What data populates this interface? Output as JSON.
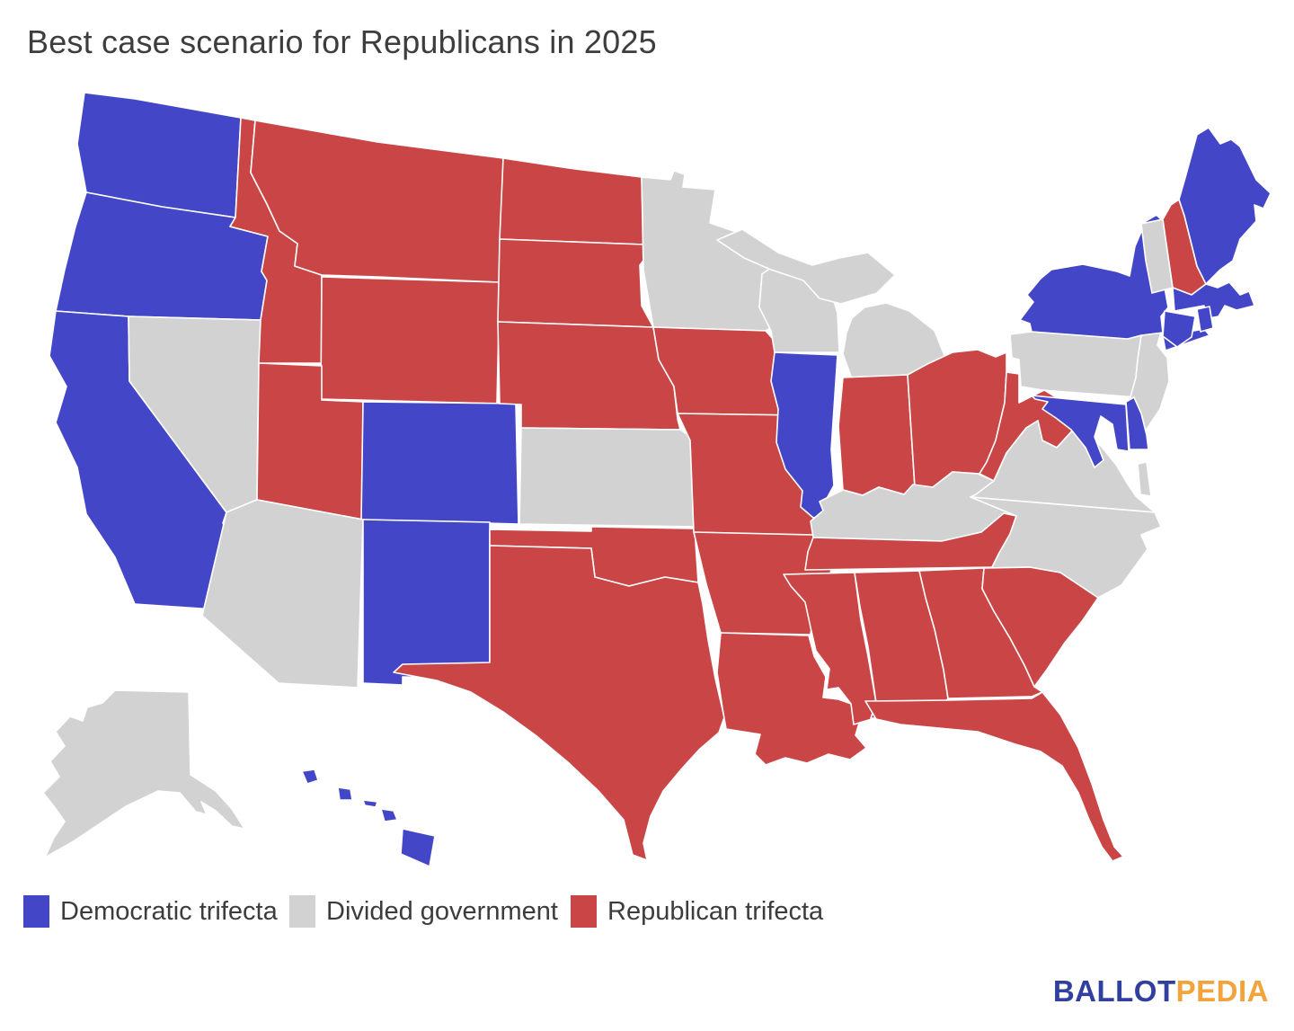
{
  "header": {
    "title": "Best case scenario for Republicans in 2025"
  },
  "legend": {
    "items": [
      {
        "label": "Democratic trifecta",
        "status": "democratic",
        "color": "#4446c8"
      },
      {
        "label": "Divided government",
        "status": "divided",
        "color": "#d2d2d2"
      },
      {
        "label": "Republican trifecta",
        "status": "republican",
        "color": "#ca4545"
      }
    ]
  },
  "footer": {
    "logo": {
      "text_primary": "BALLOT",
      "color_primary": "#31409e",
      "text_secondary": "PEDIA",
      "color_secondary": "#f2a33c"
    }
  },
  "chart_data": {
    "type": "choropleth",
    "title": "Best case scenario for Republicans in 2025",
    "region": "United States",
    "legend_position": "bottom-left",
    "categories": [
      "Democratic trifecta",
      "Divided government",
      "Republican trifecta"
    ],
    "colors": {
      "democratic": "#4446c8",
      "divided": "#d2d2d2",
      "republican": "#ca4545"
    },
    "counts": {
      "democratic": 14,
      "divided": 13,
      "republican": 23
    },
    "states": [
      {
        "abbr": "AK",
        "name": "Alaska",
        "status": "divided"
      },
      {
        "abbr": "HI",
        "name": "Hawaii",
        "status": "democratic"
      },
      {
        "abbr": "WA",
        "name": "Washington",
        "status": "democratic"
      },
      {
        "abbr": "OR",
        "name": "Oregon",
        "status": "democratic"
      },
      {
        "abbr": "CA",
        "name": "California",
        "status": "democratic"
      },
      {
        "abbr": "NV",
        "name": "Nevada",
        "status": "divided"
      },
      {
        "abbr": "ID",
        "name": "Idaho",
        "status": "republican"
      },
      {
        "abbr": "MT",
        "name": "Montana",
        "status": "republican"
      },
      {
        "abbr": "WY",
        "name": "Wyoming",
        "status": "republican"
      },
      {
        "abbr": "UT",
        "name": "Utah",
        "status": "republican"
      },
      {
        "abbr": "CO",
        "name": "Colorado",
        "status": "democratic"
      },
      {
        "abbr": "AZ",
        "name": "Arizona",
        "status": "divided"
      },
      {
        "abbr": "NM",
        "name": "New Mexico",
        "status": "democratic"
      },
      {
        "abbr": "ND",
        "name": "North Dakota",
        "status": "republican"
      },
      {
        "abbr": "SD",
        "name": "South Dakota",
        "status": "republican"
      },
      {
        "abbr": "NE",
        "name": "Nebraska",
        "status": "republican"
      },
      {
        "abbr": "KS",
        "name": "Kansas",
        "status": "divided"
      },
      {
        "abbr": "OK",
        "name": "Oklahoma",
        "status": "republican"
      },
      {
        "abbr": "TX",
        "name": "Texas",
        "status": "republican"
      },
      {
        "abbr": "MN",
        "name": "Minnesota",
        "status": "divided"
      },
      {
        "abbr": "IA",
        "name": "Iowa",
        "status": "republican"
      },
      {
        "abbr": "MO",
        "name": "Missouri",
        "status": "republican"
      },
      {
        "abbr": "AR",
        "name": "Arkansas",
        "status": "republican"
      },
      {
        "abbr": "LA",
        "name": "Louisiana",
        "status": "republican"
      },
      {
        "abbr": "WI",
        "name": "Wisconsin",
        "status": "divided"
      },
      {
        "abbr": "IL",
        "name": "Illinois",
        "status": "democratic"
      },
      {
        "abbr": "MS",
        "name": "Mississippi",
        "status": "republican"
      },
      {
        "abbr": "AL",
        "name": "Alabama",
        "status": "republican"
      },
      {
        "abbr": "GA",
        "name": "Georgia",
        "status": "republican"
      },
      {
        "abbr": "FL",
        "name": "Florida",
        "status": "republican"
      },
      {
        "abbr": "MI",
        "name": "Michigan",
        "status": "divided"
      },
      {
        "abbr": "IN",
        "name": "Indiana",
        "status": "republican"
      },
      {
        "abbr": "OH",
        "name": "Ohio",
        "status": "republican"
      },
      {
        "abbr": "KY",
        "name": "Kentucky",
        "status": "divided"
      },
      {
        "abbr": "TN",
        "name": "Tennessee",
        "status": "republican"
      },
      {
        "abbr": "PA",
        "name": "Pennsylvania",
        "status": "divided"
      },
      {
        "abbr": "NJ",
        "name": "New Jersey",
        "status": "divided"
      },
      {
        "abbr": "NY",
        "name": "New York",
        "status": "democratic"
      },
      {
        "abbr": "VT",
        "name": "Vermont",
        "status": "divided"
      },
      {
        "abbr": "NH",
        "name": "New Hampshire",
        "status": "republican"
      },
      {
        "abbr": "ME",
        "name": "Maine",
        "status": "democratic"
      },
      {
        "abbr": "MA",
        "name": "Massachusetts",
        "status": "democratic"
      },
      {
        "abbr": "RI",
        "name": "Rhode Island",
        "status": "democratic"
      },
      {
        "abbr": "CT",
        "name": "Connecticut",
        "status": "democratic"
      },
      {
        "abbr": "WV",
        "name": "West Virginia",
        "status": "republican"
      },
      {
        "abbr": "VA",
        "name": "Virginia",
        "status": "divided"
      },
      {
        "abbr": "NC",
        "name": "North Carolina",
        "status": "divided"
      },
      {
        "abbr": "SC",
        "name": "South Carolina",
        "status": "republican"
      },
      {
        "abbr": "MD",
        "name": "Maryland",
        "status": "democratic"
      },
      {
        "abbr": "DE",
        "name": "Delaware",
        "status": "democratic"
      }
    ]
  }
}
